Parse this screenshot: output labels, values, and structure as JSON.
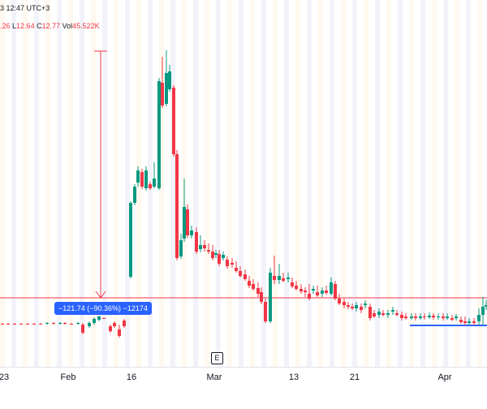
{
  "header": {
    "time_text": "3 12:47 UTC+3",
    "ohlc": {
      "h_value": ".26",
      "l_label": "L",
      "l_value": "12.64",
      "c_label": "C",
      "c_value": "12.77",
      "vol_label": "Vol",
      "vol_value": "45.522K"
    }
  },
  "measure_tool": {
    "label": "−121.74 (−90.36%) −12174"
  },
  "controls": {
    "e_button": "E"
  },
  "x_axis": {
    "ticks": [
      "23",
      "Feb",
      "16",
      "Mar",
      "13",
      "21",
      "Apr"
    ]
  },
  "colors": {
    "up": "#089981",
    "down": "#f23645",
    "measure_arrow": "#f23645",
    "measure_tag_bg": "#2962ff",
    "horizontal_level": "#f23645",
    "support_line": "#2962ff",
    "session_band_a": "#fff3e0",
    "session_band_b": "#e8eaf6"
  }
}
